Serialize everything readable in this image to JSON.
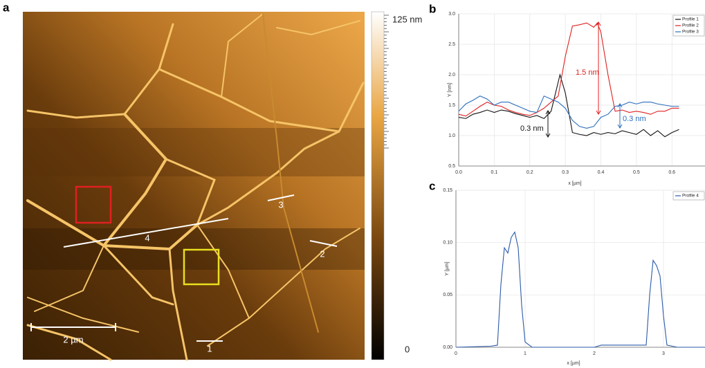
{
  "panel_labels": [
    "a",
    "b",
    "c"
  ],
  "image": {
    "scale_bar": "2 µm",
    "profile_labels": [
      "1",
      "2",
      "3",
      "4"
    ],
    "colorbar_max": "125 nm",
    "colorbar_min": "0"
  },
  "chart_data": [
    {
      "type": "line",
      "x_label": "x [µm]",
      "y_label": "Y [nm]",
      "xlim": [
        0,
        0.693
      ],
      "ylim": [
        0.5,
        3.0
      ],
      "xticks": [
        {
          "value": 0,
          "label": "0.0"
        },
        0.1,
        0.2,
        0.3,
        0.4,
        0.5,
        0.6
      ],
      "yticks": [
        0.5,
        {
          "value": 1,
          "label": "1.0"
        },
        1.5,
        {
          "value": 2,
          "label": "2.0"
        },
        2.5,
        {
          "value": 3,
          "label": "3.0"
        }
      ],
      "grid": true,
      "series": [
        {
          "name": "Profile 1",
          "color": "#111111",
          "x": [
            0,
            0.02,
            0.04,
            0.06,
            0.08,
            0.1,
            0.12,
            0.14,
            0.16,
            0.18,
            0.2,
            0.22,
            0.24,
            0.26,
            0.285,
            0.3,
            0.32,
            0.34,
            0.36,
            0.38,
            0.4,
            0.42,
            0.44,
            0.46,
            0.48,
            0.5,
            0.52,
            0.54,
            0.56,
            0.58,
            0.6,
            0.62
          ],
          "values": [
            1.3,
            1.28,
            1.35,
            1.38,
            1.42,
            1.38,
            1.42,
            1.4,
            1.36,
            1.33,
            1.3,
            1.33,
            1.28,
            1.4,
            2.0,
            1.7,
            1.05,
            1.02,
            1.0,
            1.05,
            1.02,
            1.05,
            1.03,
            1.08,
            1.05,
            1.02,
            1.1,
            1.0,
            1.08,
            0.98,
            1.05,
            1.1
          ]
        },
        {
          "name": "Profile 2",
          "color": "#e02020",
          "x": [
            0,
            0.02,
            0.04,
            0.06,
            0.08,
            0.1,
            0.12,
            0.14,
            0.16,
            0.18,
            0.2,
            0.22,
            0.24,
            0.26,
            0.28,
            0.3,
            0.32,
            0.34,
            0.36,
            0.38,
            0.39,
            0.4,
            0.42,
            0.44,
            0.46,
            0.48,
            0.5,
            0.52,
            0.54,
            0.56,
            0.58,
            0.6,
            0.62
          ],
          "values": [
            1.35,
            1.32,
            1.4,
            1.48,
            1.55,
            1.5,
            1.48,
            1.42,
            1.38,
            1.35,
            1.33,
            1.38,
            1.45,
            1.55,
            1.65,
            2.3,
            2.8,
            2.82,
            2.85,
            2.78,
            2.85,
            2.7,
            2.0,
            1.4,
            1.42,
            1.38,
            1.4,
            1.38,
            1.35,
            1.4,
            1.4,
            1.45,
            1.45
          ]
        },
        {
          "name": "Profile 3",
          "color": "#2a6ebd",
          "x": [
            0,
            0.02,
            0.04,
            0.06,
            0.08,
            0.1,
            0.12,
            0.14,
            0.16,
            0.18,
            0.2,
            0.22,
            0.24,
            0.26,
            0.28,
            0.3,
            0.32,
            0.34,
            0.36,
            0.38,
            0.4,
            0.42,
            0.44,
            0.46,
            0.48,
            0.5,
            0.52,
            0.54,
            0.56,
            0.58,
            0.6,
            0.62
          ],
          "values": [
            1.4,
            1.52,
            1.58,
            1.65,
            1.6,
            1.5,
            1.55,
            1.55,
            1.5,
            1.45,
            1.4,
            1.38,
            1.65,
            1.6,
            1.55,
            1.45,
            1.25,
            1.15,
            1.12,
            1.15,
            1.3,
            1.35,
            1.48,
            1.5,
            1.55,
            1.52,
            1.55,
            1.55,
            1.52,
            1.5,
            1.48,
            1.48
          ]
        }
      ],
      "annotations": [
        {
          "text": "1.5 nm",
          "color": "#e02020"
        },
        {
          "text": "0.3 nm",
          "color": "#111111"
        },
        {
          "text": "0.3 nm",
          "color": "#2a6ebd"
        }
      ]
    },
    {
      "type": "line",
      "x_label": "x [µm]",
      "y_label": "Y [µm]",
      "xlim": [
        0,
        3.6
      ],
      "ylim": [
        0,
        0.15
      ],
      "xticks": [
        0,
        1,
        2,
        3
      ],
      "yticks": [
        {
          "value": 0,
          "label": "0.00"
        },
        0.05,
        {
          "value": 0.1,
          "label": "0.10"
        },
        0.15
      ],
      "grid": true,
      "series": [
        {
          "name": "Profile 4",
          "color": "#2a5aa8",
          "x": [
            0,
            0.5,
            0.6,
            0.65,
            0.7,
            0.75,
            0.8,
            0.85,
            0.9,
            0.95,
            1.0,
            1.1,
            2.0,
            2.1,
            2.75,
            2.8,
            2.85,
            2.9,
            2.95,
            3.0,
            3.05,
            3.2,
            3.6
          ],
          "values": [
            0,
            0.001,
            0.002,
            0.06,
            0.095,
            0.09,
            0.105,
            0.11,
            0.095,
            0.04,
            0.005,
            0,
            0,
            0.002,
            0.002,
            0.05,
            0.083,
            0.078,
            0.068,
            0.03,
            0.002,
            0,
            0
          ]
        }
      ]
    }
  ]
}
